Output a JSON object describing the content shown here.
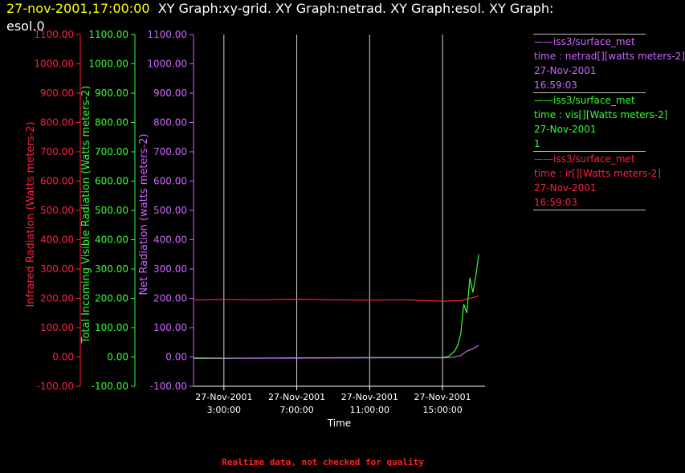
{
  "header": {
    "date": "27-nov-2001,17:00:00",
    "title_line1": "XY Graph:xy-grid.  XY Graph:netrad.  XY Graph:esol.  XY Graph:",
    "title_line2": "esol.0"
  },
  "legend": [
    {
      "line1": "iss3/surface_met",
      "line2": "time : netrad[][watts meters-2]",
      "line3": "27-Nov-2001",
      "line4": "16:59:03",
      "color": "#cc66ff"
    },
    {
      "line1": "iss3/surface_met",
      "line2": "time : vis[][Watts meters-2]",
      "line3": "27-Nov-2001",
      "line4": "1",
      "color": "#33ff33"
    },
    {
      "line1": "iss3/surface_met",
      "line2": "time : ir[][Watts meters-2]",
      "line3": "27-Nov-2001",
      "line4": "16:59:03",
      "color": "#ff2040"
    }
  ],
  "footer_note": "Realtime data, not checked for quality",
  "chart_data": {
    "type": "line",
    "xlabel": "Time",
    "x_ticks": [
      {
        "date": "27-Nov-2001",
        "time": "3:00:00"
      },
      {
        "date": "27-Nov-2001",
        "time": "7:00:00"
      },
      {
        "date": "27-Nov-2001",
        "time": "11:00:00"
      },
      {
        "date": "27-Nov-2001",
        "time": "15:00:00"
      }
    ],
    "xlim": [
      "27-Nov-2001 01:20",
      "27-Nov-2001 17:20"
    ],
    "grid": "vertical lines at x ticks",
    "y_axes": [
      {
        "label": "Infrared Radiation (Watts meters-2)",
        "color": "#ff2040",
        "ylim": [
          -100,
          1100
        ],
        "ticks": [
          "-100.00",
          "0.00",
          "100.00",
          "200.00",
          "300.00",
          "400.00",
          "500.00",
          "600.00",
          "700.00",
          "800.00",
          "900.00",
          "1000.00",
          "1100.00"
        ]
      },
      {
        "label": "Total Incoming Visible Radiation (Watts meters-2)",
        "color": "#33ff33",
        "ylim": [
          -100,
          1100
        ],
        "ticks": [
          "-100.00",
          "0.00",
          "100.00",
          "200.00",
          "300.00",
          "400.00",
          "500.00",
          "600.00",
          "700.00",
          "800.00",
          "900.00",
          "1000.00",
          "1100.00"
        ]
      },
      {
        "label": "Net Radiation (watts meters-2)",
        "color": "#cc66ff",
        "ylim": [
          -100,
          1100
        ],
        "ticks": [
          "-100.00",
          "0.00",
          "100.00",
          "200.00",
          "300.00",
          "400.00",
          "500.00",
          "600.00",
          "700.00",
          "800.00",
          "900.00",
          "1000.00",
          "1100.00"
        ]
      }
    ],
    "series": [
      {
        "name": "ir",
        "color": "#ff2040",
        "x": [
          "27-Nov-2001 01:20",
          "27-Nov-2001 03:00",
          "27-Nov-2001 05:00",
          "27-Nov-2001 07:00",
          "27-Nov-2001 09:00",
          "27-Nov-2001 11:00",
          "27-Nov-2001 13:00",
          "27-Nov-2001 15:00",
          "27-Nov-2001 16:00",
          "27-Nov-2001 16:59"
        ],
        "y": [
          195,
          196,
          195,
          197,
          195,
          194,
          195,
          190,
          192,
          208
        ]
      },
      {
        "name": "vis",
        "color": "#33ff33",
        "x": [
          "27-Nov-2001 01:20",
          "27-Nov-2001 03:00",
          "27-Nov-2001 07:00",
          "27-Nov-2001 11:00",
          "27-Nov-2001 15:00",
          "27-Nov-2001 15:20",
          "27-Nov-2001 15:40",
          "27-Nov-2001 15:50",
          "27-Nov-2001 16:00",
          "27-Nov-2001 16:10",
          "27-Nov-2001 16:20",
          "27-Nov-2001 16:30",
          "27-Nov-2001 16:40",
          "27-Nov-2001 16:50",
          "27-Nov-2001 16:59"
        ],
        "y": [
          -5,
          -5,
          -3,
          -2,
          -2,
          2,
          20,
          40,
          80,
          180,
          150,
          270,
          220,
          280,
          350
        ]
      },
      {
        "name": "netrad",
        "color": "#cc66ff",
        "x": [
          "27-Nov-2001 01:20",
          "27-Nov-2001 03:00",
          "27-Nov-2001 07:00",
          "27-Nov-2001 11:00",
          "27-Nov-2001 15:00",
          "27-Nov-2001 15:30",
          "27-Nov-2001 16:00",
          "27-Nov-2001 16:20",
          "27-Nov-2001 16:40",
          "27-Nov-2001 16:59"
        ],
        "y": [
          -3,
          -4,
          -4,
          -3,
          -3,
          -2,
          5,
          20,
          28,
          40
        ]
      }
    ]
  }
}
